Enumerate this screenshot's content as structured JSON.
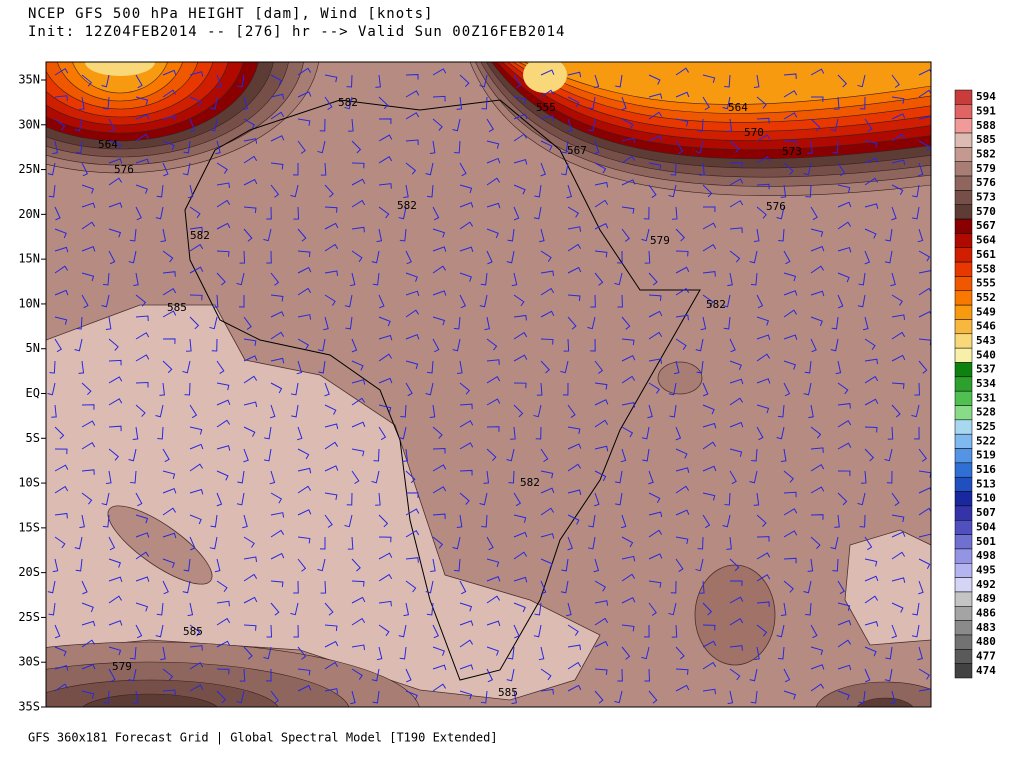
{
  "header": {
    "title": "NCEP GFS 500 hPa HEIGHT [dam], Wind [knots]",
    "subtitle": "Init: 12Z04FEB2014 -- [276] hr --> Valid Sun 00Z16FEB2014"
  },
  "latitude_labels": [
    "35N",
    "30N",
    "25N",
    "20N",
    "15N",
    "10N",
    "5N",
    "EQ",
    "5S",
    "10S",
    "15S",
    "20S",
    "25S",
    "30S",
    "35S"
  ],
  "contour_labels": [
    "582",
    "564",
    "576",
    "555",
    "564",
    "570",
    "567",
    "573",
    "582",
    "576",
    "582",
    "579",
    "582",
    "585",
    "582",
    "585",
    "579",
    "585"
  ],
  "colorbar": [
    {
      "label": 594,
      "color": "#c83c3c"
    },
    {
      "label": 591,
      "color": "#e06464"
    },
    {
      "label": 588,
      "color": "#f09a9a"
    },
    {
      "label": 585,
      "color": "#dcbcb2"
    },
    {
      "label": 582,
      "color": "#c49a90"
    },
    {
      "label": 579,
      "color": "#a87e74"
    },
    {
      "label": 576,
      "color": "#8e665e"
    },
    {
      "label": 573,
      "color": "#765048"
    },
    {
      "label": 570,
      "color": "#5e3c36"
    },
    {
      "label": 567,
      "color": "#8a0000"
    },
    {
      "label": 564,
      "color": "#b00a00"
    },
    {
      "label": 561,
      "color": "#d01e00"
    },
    {
      "label": 558,
      "color": "#e83800"
    },
    {
      "label": 555,
      "color": "#f05800"
    },
    {
      "label": 552,
      "color": "#f87800"
    },
    {
      "label": 549,
      "color": "#f89a10"
    },
    {
      "label": 546,
      "color": "#f8b840"
    },
    {
      "label": 543,
      "color": "#f8d878"
    },
    {
      "label": 540,
      "color": "#f8f0a8"
    },
    {
      "label": 537,
      "color": "#0e820e"
    },
    {
      "label": 534,
      "color": "#2ea02e"
    },
    {
      "label": 531,
      "color": "#50c050"
    },
    {
      "label": 528,
      "color": "#88dc88"
    },
    {
      "label": 525,
      "color": "#a8d8f0"
    },
    {
      "label": 522,
      "color": "#80b8f0"
    },
    {
      "label": 519,
      "color": "#5494e4"
    },
    {
      "label": 516,
      "color": "#3070d4"
    },
    {
      "label": 513,
      "color": "#2050c0"
    },
    {
      "label": 510,
      "color": "#1a28a0"
    },
    {
      "label": 507,
      "color": "#3434a8"
    },
    {
      "label": 504,
      "color": "#5050c0"
    },
    {
      "label": 501,
      "color": "#7070d0"
    },
    {
      "label": 498,
      "color": "#9494e4"
    },
    {
      "label": 495,
      "color": "#b4b4f0"
    },
    {
      "label": 492,
      "color": "#d4d4f4"
    },
    {
      "label": 489,
      "color": "#c4c4c4"
    },
    {
      "label": 486,
      "color": "#a4a4a4"
    },
    {
      "label": 483,
      "color": "#8a8a8a"
    },
    {
      "label": 480,
      "color": "#727272"
    },
    {
      "label": 477,
      "color": "#5a5a5a"
    },
    {
      "label": 474,
      "color": "#424242"
    }
  ],
  "footer": "GFS 360x181 Forecast Grid | Global Spectral Model [T190 Extended]"
}
